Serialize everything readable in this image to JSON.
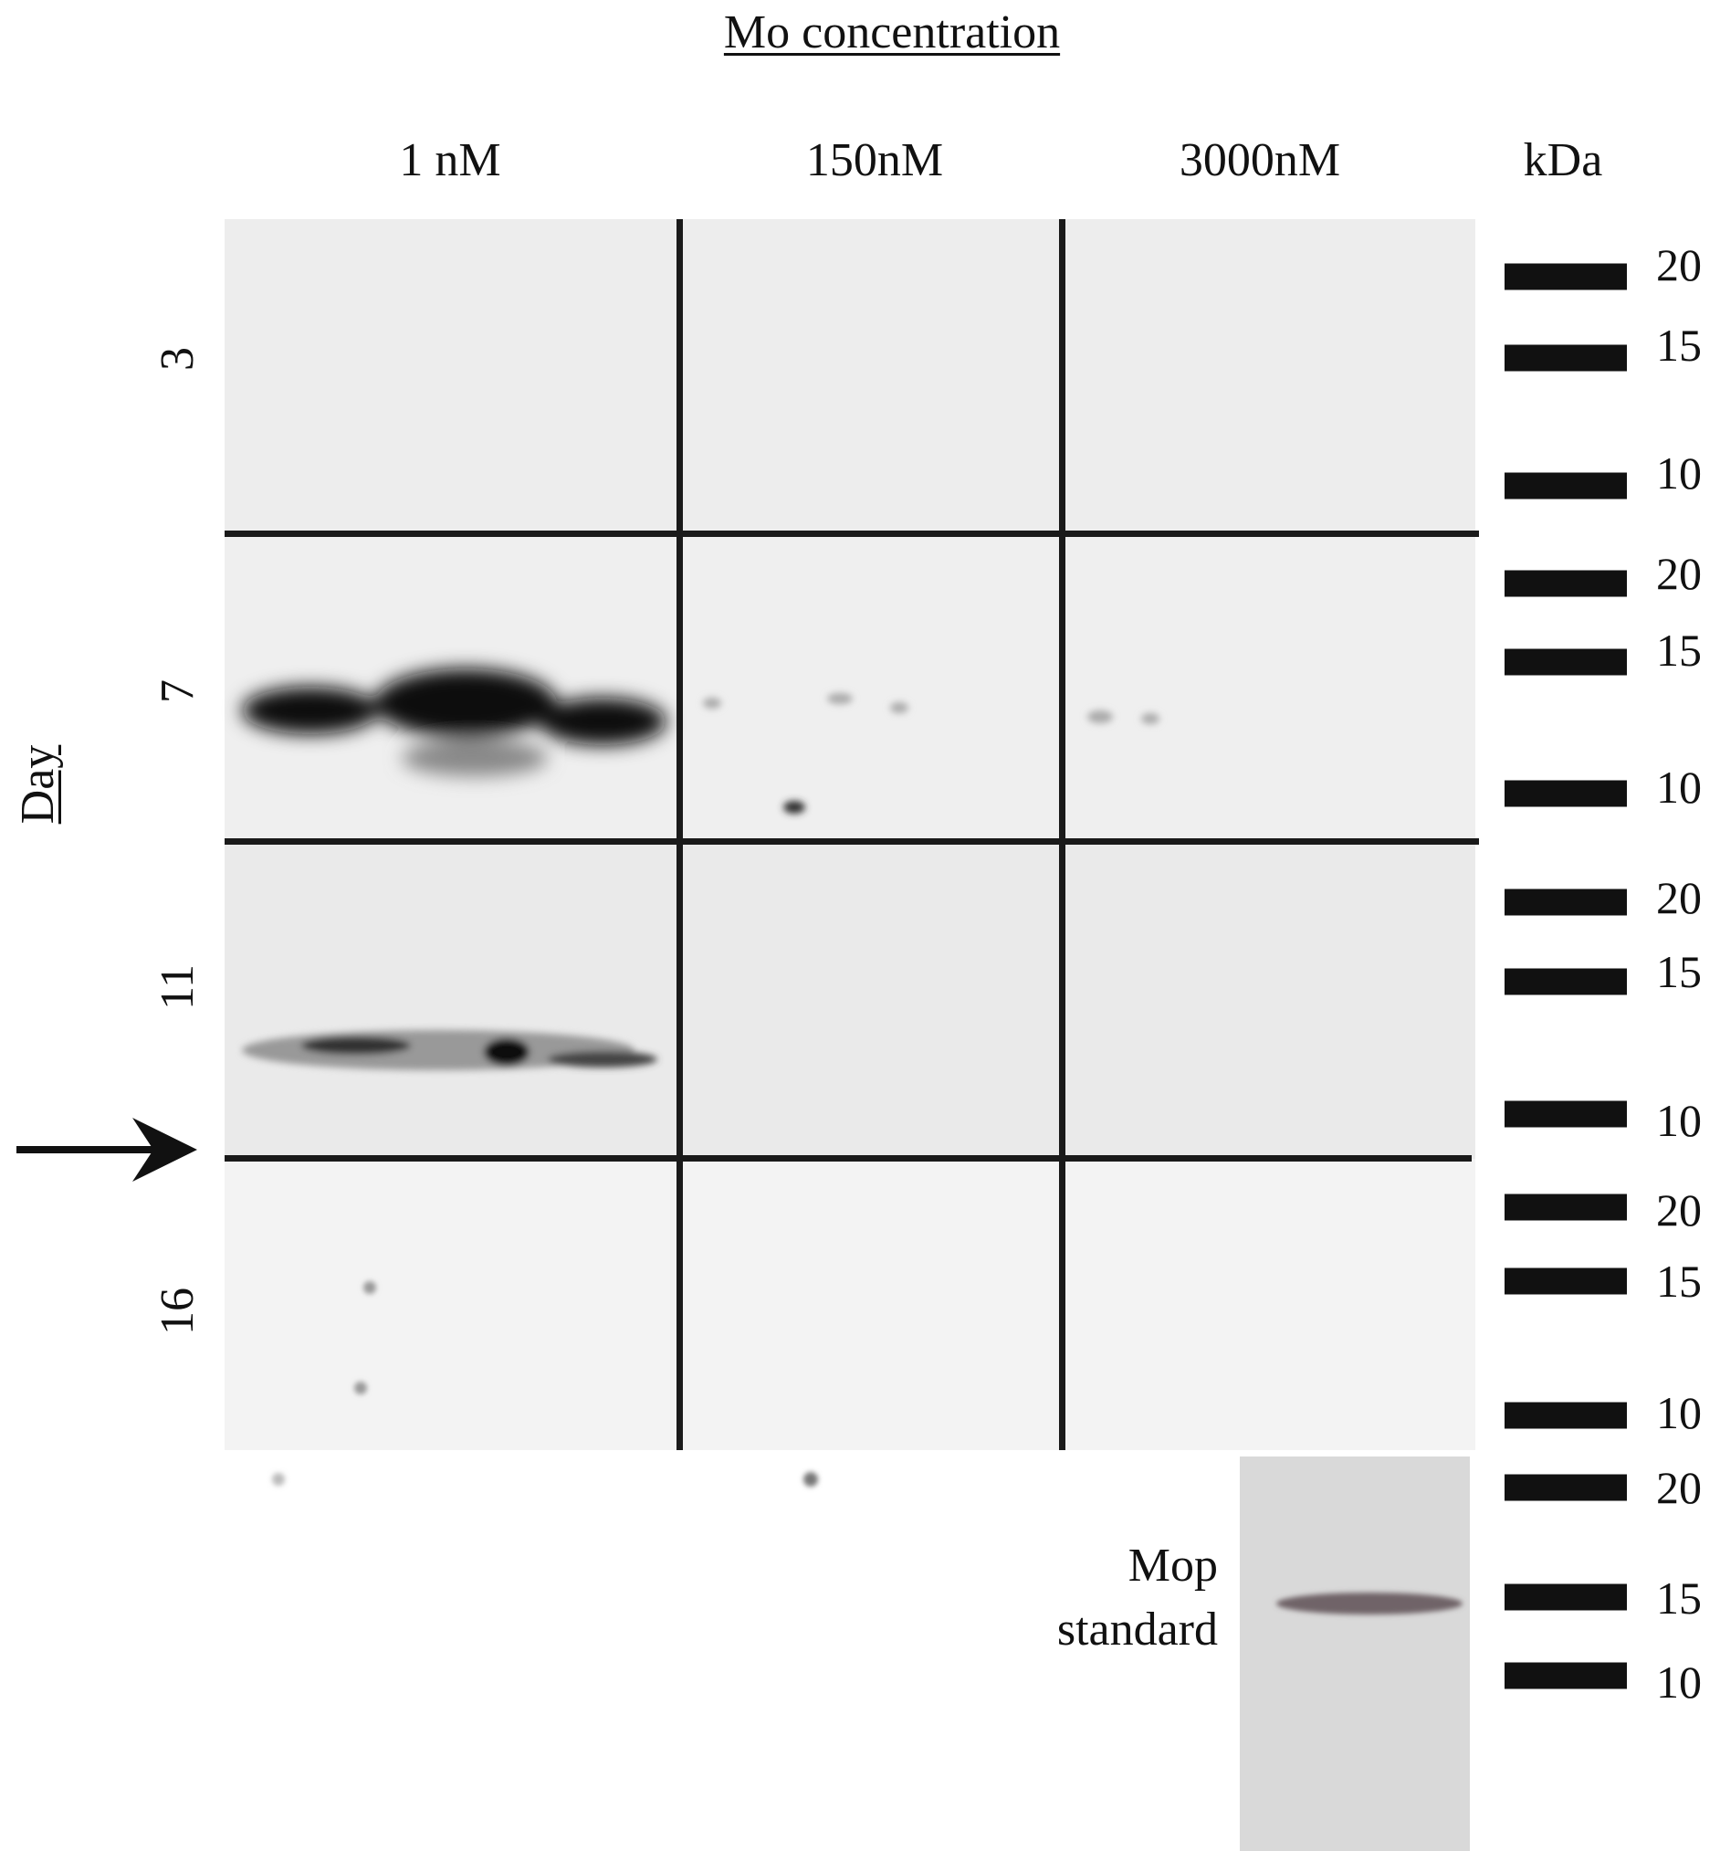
{
  "title": "Mo concentration",
  "columns": [
    "1 nM",
    "150nM",
    "3000nM"
  ],
  "marker_header": "kDa",
  "row_axis_label": "Day",
  "rows": [
    "3",
    "7",
    "11",
    "16"
  ],
  "marker_labels": [
    [
      "20",
      "15",
      "10"
    ],
    [
      "20",
      "15",
      "10"
    ],
    [
      "20",
      "15",
      "10"
    ],
    [
      "20",
      "15",
      "10"
    ],
    [
      "20",
      "15",
      "10"
    ]
  ],
  "standard_label": [
    "Mop",
    "standard"
  ],
  "indicator": "arrow-right-icon",
  "colors": {
    "band": "#0d0d0d",
    "background": "#ececec",
    "standard_band": "#6f6468"
  }
}
